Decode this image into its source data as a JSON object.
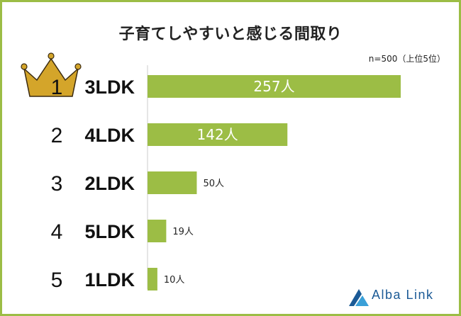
{
  "chart_data": {
    "type": "bar",
    "orientation": "horizontal",
    "title": "子育てしやすいと感じる間取り",
    "note": "n=500（上位5位）",
    "ranks": [
      "1",
      "2",
      "3",
      "4",
      "5"
    ],
    "categories": [
      "3LDK",
      "4LDK",
      "2LDK",
      "5LDK",
      "1LDK"
    ],
    "values": [
      257,
      142,
      50,
      19,
      10
    ],
    "value_labels": [
      "257人",
      "142人",
      "50人",
      "19人",
      "10人"
    ],
    "xlim": [
      0,
      257
    ],
    "grid": false,
    "legend": "none",
    "bar_color": "#9cbd45",
    "crown_color": "#d4a52a"
  },
  "brand": {
    "name": "Alba Link",
    "color": "#1b5a96"
  },
  "frame_color": "#9cbd45"
}
